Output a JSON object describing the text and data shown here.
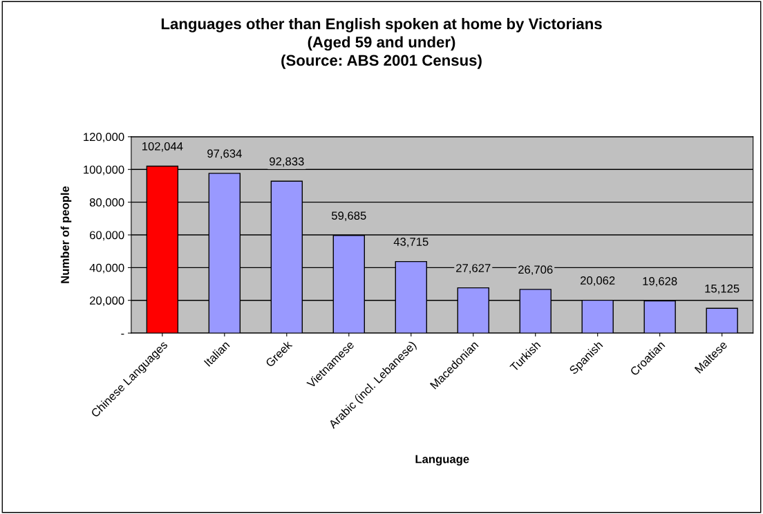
{
  "chart_data": {
    "type": "bar",
    "title": "Languages other than English spoken at home by Victorians\n(Aged 59 and under)\n(Source: ABS 2001 Census)",
    "xlabel": "Language",
    "ylabel": "Number of people",
    "categories": [
      "Chinese Languages",
      "Italian",
      "Greek",
      "Vietnamese",
      "Arabic (incl. Lebanese)",
      "Macedonian",
      "Turkish",
      "Spanish",
      "Croatian",
      "Maltese"
    ],
    "values": [
      102044,
      97634,
      92833,
      59685,
      43715,
      27627,
      26706,
      20062,
      19628,
      15125
    ],
    "value_labels": [
      "102,044",
      "97,634",
      "92,833",
      "59,685",
      "43,715",
      "27,627",
      "26,706",
      "20,062",
      "19,628",
      "15,125"
    ],
    "colors": [
      "#ff0000",
      "#9999ff",
      "#9999ff",
      "#9999ff",
      "#9999ff",
      "#9999ff",
      "#9999ff",
      "#9999ff",
      "#9999ff",
      "#9999ff"
    ],
    "ylim": [
      0,
      120000
    ],
    "yticks": [
      {
        "value": 0,
        "label": "-"
      },
      {
        "value": 20000,
        "label": "20,000"
      },
      {
        "value": 40000,
        "label": "40,000"
      },
      {
        "value": 60000,
        "label": "60,000"
      },
      {
        "value": 80000,
        "label": "80,000"
      },
      {
        "value": 100000,
        "label": "100,000"
      },
      {
        "value": 120000,
        "label": "120,000"
      }
    ],
    "grid": "y",
    "legend": false
  }
}
